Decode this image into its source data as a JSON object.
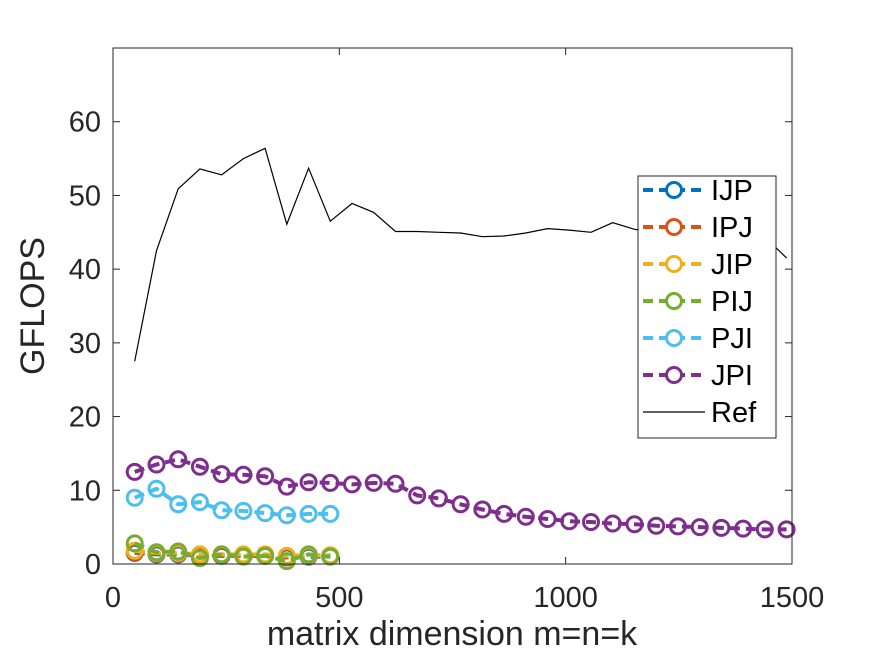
{
  "chart_data": {
    "type": "line",
    "title": "",
    "xlabel": "matrix dimension m=n=k",
    "ylabel": "GFLOPS",
    "xlim": [
      0,
      1500
    ],
    "ylim": [
      0,
      70
    ],
    "xticks": [
      0,
      500,
      1000,
      1500
    ],
    "yticks": [
      0,
      10,
      20,
      30,
      40,
      50,
      60
    ],
    "grid": false,
    "legend_position": "right",
    "series": [
      {
        "name": "IJP",
        "color": "#0072bd",
        "style": "dashed-circle",
        "x": [
          48,
          96,
          144,
          192,
          240,
          288,
          336,
          384,
          432,
          480
        ],
        "y": [
          1.5,
          1.3,
          1.3,
          1.1,
          1.1,
          1.1,
          1.1,
          0.9,
          1.0,
          1.0
        ]
      },
      {
        "name": "IPJ",
        "color": "#d95319",
        "style": "dashed-circle",
        "x": [
          48,
          96,
          144,
          192,
          240,
          288,
          336,
          384,
          432,
          480
        ],
        "y": [
          1.6,
          1.4,
          1.4,
          1.2,
          1.2,
          1.2,
          1.2,
          1.0,
          1.1,
          1.1
        ]
      },
      {
        "name": "JIP",
        "color": "#edb120",
        "style": "dashed-circle",
        "x": [
          48,
          96,
          144,
          192,
          240,
          288,
          336,
          384,
          432,
          480
        ],
        "y": [
          1.8,
          1.5,
          1.5,
          1.3,
          1.3,
          1.3,
          1.3,
          1.1,
          1.2,
          1.2
        ]
      },
      {
        "name": "PIJ",
        "color": "#77ac30",
        "style": "dashed-circle",
        "x": [
          48,
          96,
          144,
          192,
          240,
          288,
          336,
          384,
          432,
          480
        ],
        "y": [
          2.8,
          1.6,
          1.7,
          0.8,
          1.3,
          1.0,
          1.1,
          0.4,
          1.3,
          1.0
        ]
      },
      {
        "name": "PJI",
        "color": "#4dbeee",
        "style": "dashed-circle",
        "x": [
          48,
          96,
          144,
          192,
          240,
          288,
          336,
          384,
          432,
          480
        ],
        "y": [
          9.0,
          10.2,
          8.1,
          8.4,
          7.3,
          7.2,
          6.9,
          6.6,
          6.8,
          6.8
        ]
      },
      {
        "name": "JPI",
        "color": "#7e2f8e",
        "style": "dashed-circle",
        "x": [
          48,
          96,
          144,
          192,
          240,
          288,
          336,
          384,
          432,
          480,
          528,
          576,
          624,
          672,
          720,
          768,
          816,
          864,
          912,
          960,
          1008,
          1056,
          1104,
          1152,
          1200,
          1248,
          1296,
          1344,
          1392,
          1440,
          1488
        ],
        "y": [
          12.5,
          13.5,
          14.2,
          13.2,
          12.2,
          12.1,
          11.9,
          10.5,
          11.1,
          11.0,
          10.8,
          11.0,
          10.9,
          9.3,
          8.9,
          8.1,
          7.4,
          6.8,
          6.4,
          6.1,
          5.8,
          5.7,
          5.5,
          5.4,
          5.2,
          5.1,
          5.0,
          4.9,
          4.8,
          4.7,
          4.7
        ]
      },
      {
        "name": "Ref",
        "color": "#000000",
        "style": "solid",
        "x": [
          48,
          96,
          144,
          192,
          240,
          288,
          336,
          384,
          432,
          480,
          528,
          576,
          624,
          672,
          720,
          768,
          816,
          864,
          912,
          960,
          1008,
          1056,
          1104,
          1152,
          1200,
          1248,
          1296,
          1344,
          1392,
          1440,
          1488
        ],
        "y": [
          27.5,
          42.5,
          50.9,
          53.6,
          52.8,
          55.0,
          56.4,
          46.1,
          53.7,
          46.5,
          48.9,
          47.7,
          45.1,
          45.1,
          45.0,
          44.9,
          44.4,
          44.5,
          44.9,
          45.5,
          45.3,
          45.0,
          46.3,
          45.4,
          45.0,
          45.1,
          44.8,
          44.5,
          44.6,
          44.4,
          41.5
        ]
      }
    ]
  }
}
